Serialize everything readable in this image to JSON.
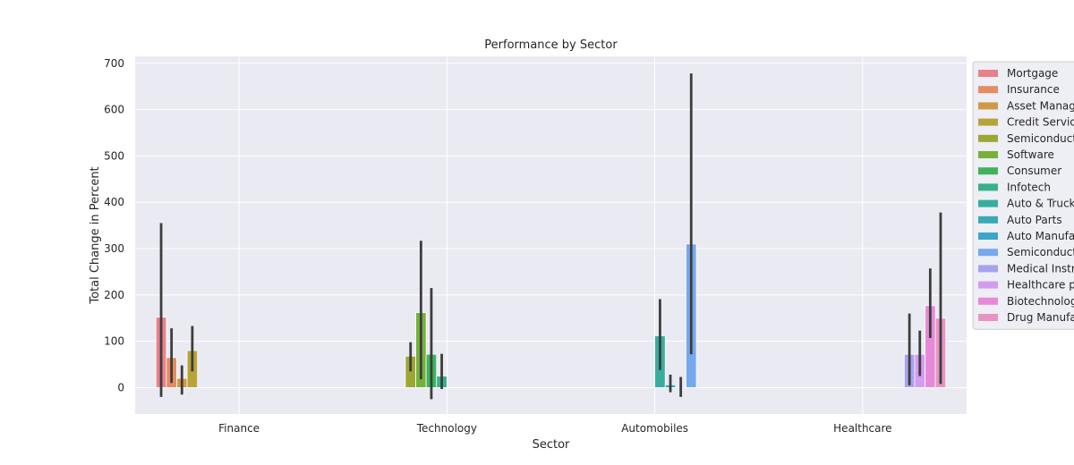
{
  "chart_data": {
    "type": "bar",
    "title": "Performance by Sector",
    "xlabel": "Sector",
    "ylabel": "Total Change in Percent",
    "categories": [
      "Finance",
      "Technology",
      "Automobiles",
      "Healthcare"
    ],
    "ylim": [
      -57,
      715
    ],
    "yticks": [
      0,
      100,
      200,
      300,
      400,
      500,
      600,
      700
    ],
    "grid": true,
    "legend_position": "right",
    "series": [
      {
        "name": "Mortgage",
        "color": "#e8818a",
        "values": [
          152,
          null,
          null,
          null
        ],
        "ci": [
          [
            -20,
            355
          ],
          null,
          null,
          null
        ]
      },
      {
        "name": "Insurance",
        "color": "#e58c63",
        "values": [
          65,
          null,
          null,
          null
        ],
        "ci": [
          [
            10,
            128
          ],
          null,
          null,
          null
        ]
      },
      {
        "name": "Asset Management",
        "color": "#cf9a47",
        "values": [
          20,
          null,
          null,
          null
        ],
        "ci": [
          [
            -15,
            48
          ],
          null,
          null,
          null
        ]
      },
      {
        "name": "Credit Services",
        "color": "#b8a33b",
        "values": [
          80,
          null,
          null,
          null
        ],
        "ci": [
          [
            35,
            133
          ],
          null,
          null,
          null
        ]
      },
      {
        "name": "Semiconductors",
        "color": "#9ba733",
        "values": [
          null,
          68,
          null,
          null
        ],
        "ci": [
          null,
          [
            35,
            98
          ],
          null,
          null
        ]
      },
      {
        "name": "Software",
        "color": "#75b13b",
        "values": [
          null,
          162,
          null,
          null
        ],
        "ci": [
          null,
          [
            18,
            317
          ],
          null,
          null
        ]
      },
      {
        "name": "Consumer",
        "color": "#3fb35a",
        "values": [
          null,
          72,
          null,
          null
        ],
        "ci": [
          null,
          [
            -25,
            215
          ],
          null,
          null
        ]
      },
      {
        "name": "Infotech",
        "color": "#38b08a",
        "values": [
          null,
          25,
          null,
          null
        ],
        "ci": [
          null,
          [
            -3,
            73
          ],
          null,
          null
        ]
      },
      {
        "name": "Auto & Truck Dealerships",
        "color": "#36ad9f",
        "values": [
          null,
          null,
          112,
          null
        ],
        "ci": [
          null,
          null,
          [
            38,
            191
          ],
          null
        ]
      },
      {
        "name": "Auto Parts",
        "color": "#38aab5",
        "values": [
          null,
          null,
          6,
          null
        ],
        "ci": [
          null,
          null,
          [
            -10,
            28
          ],
          null
        ]
      },
      {
        "name": "Auto Manufacturers",
        "color": "#3ba5cc",
        "values": [
          null,
          null,
          2,
          null
        ],
        "ci": [
          null,
          null,
          [
            -20,
            23
          ],
          null
        ]
      },
      {
        "name": "Semiconductor Equipment",
        "color": "#76a8ec",
        "values": [
          null,
          null,
          310,
          null
        ],
        "ci": [
          null,
          null,
          [
            72,
            678
          ],
          null
        ]
      },
      {
        "name": "Medical Instruments",
        "color": "#a6a3ed",
        "values": [
          null,
          null,
          null,
          72
        ],
        "ci": [
          null,
          null,
          null,
          [
            5,
            160
          ]
        ]
      },
      {
        "name": "Healthcare plans",
        "color": "#d39cef",
        "values": [
          null,
          null,
          null,
          72
        ],
        "ci": [
          null,
          null,
          null,
          [
            25,
            123
          ]
        ]
      },
      {
        "name": "Biotechnology",
        "color": "#e68ad8",
        "values": [
          null,
          null,
          null,
          177
        ],
        "ci": [
          null,
          null,
          null,
          [
            107,
            257
          ]
        ]
      },
      {
        "name": "Drug Manufacturers",
        "color": "#e794c3",
        "values": [
          null,
          null,
          null,
          150
        ],
        "ci": [
          null,
          null,
          null,
          [
            8,
            378
          ]
        ]
      }
    ]
  }
}
